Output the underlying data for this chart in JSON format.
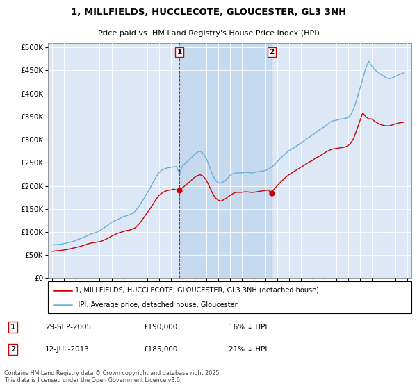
{
  "title": "1, MILLFIELDS, HUCCLECOTE, GLOUCESTER, GL3 3NH",
  "subtitle": "Price paid vs. HM Land Registry's House Price Index (HPI)",
  "plot_bg_color": "#dce8f5",
  "shade_color": "#c5d9ef",
  "ytick_values": [
    0,
    50000,
    100000,
    150000,
    200000,
    250000,
    300000,
    350000,
    400000,
    450000,
    500000
  ],
  "ylim": [
    0,
    510000
  ],
  "xtick_years": [
    1995,
    1996,
    1997,
    1998,
    1999,
    2000,
    2001,
    2002,
    2003,
    2004,
    2005,
    2006,
    2007,
    2008,
    2009,
    2010,
    2011,
    2012,
    2013,
    2014,
    2015,
    2016,
    2017,
    2018,
    2019,
    2020,
    2021,
    2022,
    2023,
    2024,
    2025
  ],
  "hpi_color": "#6baed6",
  "price_color": "#cc0000",
  "vline_color": "#cc0000",
  "marker1_year": 2005.75,
  "marker2_year": 2013.54,
  "marker1_label": "1",
  "marker2_label": "2",
  "sale1_date": "29-SEP-2005",
  "sale1_price": "£190,000",
  "sale1_hpi": "16% ↓ HPI",
  "sale2_date": "12-JUL-2013",
  "sale2_price": "£185,000",
  "sale2_hpi": "21% ↓ HPI",
  "sale1_price_val": 190000,
  "sale2_price_val": 185000,
  "legend_line1": "1, MILLFIELDS, HUCCLECOTE, GLOUCESTER, GL3 3NH (detached house)",
  "legend_line2": "HPI: Average price, detached house, Gloucester",
  "footnote": "Contains HM Land Registry data © Crown copyright and database right 2025.\nThis data is licensed under the Open Government Licence v3.0.",
  "hpi_data_x": [
    1995.0,
    1995.25,
    1995.5,
    1995.75,
    1996.0,
    1996.25,
    1996.5,
    1996.75,
    1997.0,
    1997.25,
    1997.5,
    1997.75,
    1998.0,
    1998.25,
    1998.5,
    1998.75,
    1999.0,
    1999.25,
    1999.5,
    1999.75,
    2000.0,
    2000.25,
    2000.5,
    2000.75,
    2001.0,
    2001.25,
    2001.5,
    2001.75,
    2002.0,
    2002.25,
    2002.5,
    2002.75,
    2003.0,
    2003.25,
    2003.5,
    2003.75,
    2004.0,
    2004.25,
    2004.5,
    2004.75,
    2005.0,
    2005.25,
    2005.5,
    2005.75,
    2006.0,
    2006.25,
    2006.5,
    2006.75,
    2007.0,
    2007.25,
    2007.5,
    2007.75,
    2008.0,
    2008.25,
    2008.5,
    2008.75,
    2009.0,
    2009.25,
    2009.5,
    2009.75,
    2010.0,
    2010.25,
    2010.5,
    2010.75,
    2011.0,
    2011.25,
    2011.5,
    2011.75,
    2012.0,
    2012.25,
    2012.5,
    2012.75,
    2013.0,
    2013.25,
    2013.5,
    2013.75,
    2014.0,
    2014.25,
    2014.5,
    2014.75,
    2015.0,
    2015.25,
    2015.5,
    2015.75,
    2016.0,
    2016.25,
    2016.5,
    2016.75,
    2017.0,
    2017.25,
    2017.5,
    2017.75,
    2018.0,
    2018.25,
    2018.5,
    2018.75,
    2019.0,
    2019.25,
    2019.5,
    2019.75,
    2020.0,
    2020.25,
    2020.5,
    2020.75,
    2021.0,
    2021.25,
    2021.5,
    2021.75,
    2022.0,
    2022.25,
    2022.5,
    2022.75,
    2023.0,
    2023.25,
    2023.5,
    2023.75,
    2024.0,
    2024.25,
    2024.5,
    2024.75
  ],
  "hpi_data_y": [
    72000,
    72500,
    73000,
    73500,
    75000,
    76500,
    78000,
    79500,
    82000,
    84500,
    87000,
    89500,
    92500,
    95500,
    97500,
    99500,
    103000,
    107000,
    111000,
    116000,
    121000,
    124000,
    127000,
    130000,
    133000,
    135000,
    137000,
    140000,
    145000,
    153000,
    163000,
    173000,
    184000,
    195000,
    207000,
    219000,
    228000,
    234000,
    237000,
    239000,
    240000,
    241000,
    242000,
    226000,
    243000,
    249000,
    255000,
    261000,
    268000,
    273000,
    275000,
    270000,
    260000,
    244000,
    227000,
    214000,
    207000,
    206000,
    209000,
    214000,
    222000,
    226000,
    228000,
    228000,
    228000,
    229000,
    229000,
    228000,
    228000,
    230000,
    231000,
    232000,
    233000,
    236000,
    240000,
    245000,
    252000,
    259000,
    265000,
    271000,
    276000,
    280000,
    283000,
    288000,
    292000,
    297000,
    302000,
    306000,
    310000,
    315000,
    320000,
    324000,
    328000,
    333000,
    338000,
    341000,
    342000,
    344000,
    345000,
    346000,
    348000,
    355000,
    368000,
    388000,
    410000,
    432000,
    455000,
    470000,
    460000,
    452000,
    447000,
    442000,
    438000,
    434000,
    432000,
    434000,
    437000,
    440000,
    443000,
    445000
  ],
  "price_data_x": [
    1995.0,
    1995.25,
    1995.5,
    1995.75,
    1996.0,
    1996.25,
    1996.5,
    1996.75,
    1997.0,
    1997.25,
    1997.5,
    1997.75,
    1998.0,
    1998.25,
    1998.5,
    1998.75,
    1999.0,
    1999.25,
    1999.5,
    1999.75,
    2000.0,
    2000.25,
    2000.5,
    2000.75,
    2001.0,
    2001.25,
    2001.5,
    2001.75,
    2002.0,
    2002.25,
    2002.5,
    2002.75,
    2003.0,
    2003.25,
    2003.5,
    2003.75,
    2004.0,
    2004.25,
    2004.5,
    2004.75,
    2005.0,
    2005.25,
    2005.5,
    2005.75,
    2006.0,
    2006.25,
    2006.5,
    2006.75,
    2007.0,
    2007.25,
    2007.5,
    2007.75,
    2008.0,
    2008.25,
    2008.5,
    2008.75,
    2009.0,
    2009.25,
    2009.5,
    2009.75,
    2010.0,
    2010.25,
    2010.5,
    2010.75,
    2011.0,
    2011.25,
    2011.5,
    2011.75,
    2012.0,
    2012.25,
    2012.5,
    2012.75,
    2013.0,
    2013.25,
    2013.5,
    2013.75,
    2014.0,
    2014.25,
    2014.5,
    2014.75,
    2015.0,
    2015.25,
    2015.5,
    2015.75,
    2016.0,
    2016.25,
    2016.5,
    2016.75,
    2017.0,
    2017.25,
    2017.5,
    2017.75,
    2018.0,
    2018.25,
    2018.5,
    2018.75,
    2019.0,
    2019.25,
    2019.5,
    2019.75,
    2020.0,
    2020.25,
    2020.5,
    2020.75,
    2021.0,
    2021.25,
    2021.5,
    2021.75,
    2022.0,
    2022.25,
    2022.5,
    2022.75,
    2023.0,
    2023.25,
    2023.5,
    2023.75,
    2024.0,
    2024.25,
    2024.5,
    2024.75
  ],
  "price_data_y": [
    58000,
    59000,
    59500,
    60000,
    61000,
    62000,
    63500,
    65000,
    66500,
    68000,
    70000,
    72000,
    74000,
    76000,
    77000,
    78000,
    79000,
    81000,
    84000,
    87000,
    91000,
    94000,
    97000,
    99000,
    101000,
    103000,
    104000,
    106000,
    109000,
    115000,
    123000,
    132000,
    141000,
    150000,
    160000,
    170000,
    179000,
    184000,
    188000,
    190000,
    191000,
    193000,
    191000,
    190000,
    196000,
    201000,
    206000,
    212000,
    218000,
    222000,
    224000,
    221000,
    213000,
    200000,
    186000,
    175000,
    169000,
    167000,
    170000,
    174000,
    179000,
    183000,
    186000,
    186000,
    186000,
    187000,
    187000,
    186000,
    186000,
    187000,
    188000,
    189000,
    190000,
    191000,
    185000,
    193000,
    200000,
    207000,
    213000,
    219000,
    224000,
    228000,
    232000,
    236000,
    240000,
    244000,
    248000,
    252000,
    255000,
    260000,
    263000,
    267000,
    271000,
    275000,
    278000,
    280000,
    281000,
    282000,
    283000,
    284000,
    287000,
    293000,
    304000,
    322000,
    340000,
    358000,
    350000,
    345000,
    345000,
    340000,
    336000,
    333000,
    331000,
    330000,
    330000,
    332000,
    334000,
    336000,
    337000,
    338000
  ]
}
